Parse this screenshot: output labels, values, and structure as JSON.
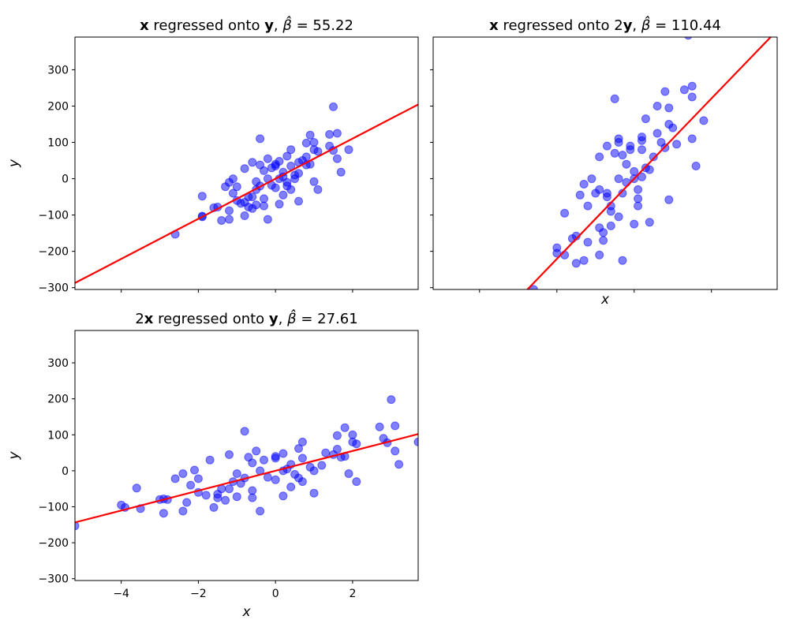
{
  "chart_data": [
    {
      "type": "scatter",
      "title": "x regressed onto y, β̂ = 55.22",
      "title_parts": {
        "bold_var": "x",
        "mid": " regressed onto ",
        "bold_var2": "y",
        "beta": "55.22"
      },
      "xlabel": "",
      "ylabel": "y",
      "xlim": [
        -5.2,
        3.7
      ],
      "ylim": [
        -305,
        390
      ],
      "xticks": [
        -4,
        -2,
        0,
        2
      ],
      "yticks": [
        -300,
        -200,
        -100,
        0,
        100,
        200,
        300
      ],
      "show_x_tick_labels": false,
      "show_y_tick_labels": true,
      "line": {
        "slope": 55.22,
        "color": "#ff0000"
      },
      "marker_color": "#0000ff",
      "points": [
        [
          -2.6,
          -153
        ],
        [
          -1.9,
          -105
        ],
        [
          -1.9,
          -48
        ],
        [
          -1.6,
          -80
        ],
        [
          -1.5,
          -78
        ],
        [
          -1.4,
          -115
        ],
        [
          -1.3,
          -22
        ],
        [
          -1.2,
          -10
        ],
        [
          -1.2,
          -112
        ],
        [
          -1.1,
          -40
        ],
        [
          -1.1,
          0
        ],
        [
          -1.0,
          -22
        ],
        [
          -0.9,
          -68
        ],
        [
          -0.8,
          28
        ],
        [
          -0.8,
          -102
        ],
        [
          -0.7,
          -50
        ],
        [
          -0.6,
          -82
        ],
        [
          -0.6,
          45
        ],
        [
          -0.5,
          -30
        ],
        [
          -0.5,
          -72
        ],
        [
          -0.5,
          -8
        ],
        [
          -0.4,
          110
        ],
        [
          -0.4,
          38
        ],
        [
          -0.3,
          22
        ],
        [
          -0.3,
          -55
        ],
        [
          -0.2,
          55
        ],
        [
          -0.2,
          0
        ],
        [
          -0.2,
          -112
        ],
        [
          -0.1,
          30
        ],
        [
          -0.1,
          -18
        ],
        [
          0.0,
          40
        ],
        [
          0.0,
          -25
        ],
        [
          0.1,
          48
        ],
        [
          0.1,
          0
        ],
        [
          0.2,
          -45
        ],
        [
          0.2,
          18
        ],
        [
          0.3,
          -10
        ],
        [
          0.3,
          62
        ],
        [
          0.4,
          80
        ],
        [
          0.4,
          35
        ],
        [
          0.4,
          -30
        ],
        [
          0.5,
          10
        ],
        [
          0.6,
          -62
        ],
        [
          0.6,
          15
        ],
        [
          0.7,
          50
        ],
        [
          0.8,
          98
        ],
        [
          0.8,
          38
        ],
        [
          0.9,
          120
        ],
        [
          1.0,
          -8
        ],
        [
          1.0,
          100
        ],
        [
          1.1,
          75
        ],
        [
          1.1,
          -30
        ],
        [
          1.4,
          122
        ],
        [
          1.5,
          78
        ],
        [
          1.5,
          198
        ],
        [
          1.6,
          125
        ],
        [
          1.6,
          55
        ],
        [
          1.7,
          18
        ],
        [
          1.9,
          80
        ],
        [
          -1.9,
          -103
        ],
        [
          -1.2,
          -88
        ],
        [
          -0.7,
          -78
        ],
        [
          0.2,
          5
        ],
        [
          0.6,
          45
        ],
        [
          -0.3,
          -75
        ],
        [
          0.0,
          35
        ],
        [
          0.5,
          0
        ],
        [
          -0.8,
          -65
        ],
        [
          0.9,
          40
        ],
        [
          1.0,
          80
        ],
        [
          -0.4,
          -20
        ],
        [
          -1.0,
          -60
        ],
        [
          0.3,
          -20
        ],
        [
          0.8,
          60
        ],
        [
          1.4,
          90
        ],
        [
          -0.6,
          -50
        ],
        [
          0.1,
          -70
        ]
      ]
    },
    {
      "type": "scatter",
      "title": "x regressed onto 2y, β̂ = 110.44",
      "title_parts": {
        "bold_var": "x",
        "mid": " regressed onto 2",
        "bold_var2": "y",
        "beta": "110.44"
      },
      "xlabel": "x",
      "ylabel": "",
      "xlim": [
        -5.2,
        3.7
      ],
      "ylim": [
        -305,
        390
      ],
      "xticks": [
        -4,
        -2,
        0,
        2
      ],
      "yticks": [
        -300,
        -200,
        -100,
        0,
        100,
        200,
        300
      ],
      "show_x_tick_labels": false,
      "show_y_tick_labels": false,
      "line": {
        "slope": 110.44,
        "color": "#ff0000"
      },
      "marker_color": "#0000ff",
      "points": [
        [
          -2.6,
          -305
        ],
        [
          -2.0,
          -190
        ],
        [
          -2.0,
          -205
        ],
        [
          -1.8,
          -95
        ],
        [
          -1.8,
          -210
        ],
        [
          -1.6,
          -165
        ],
        [
          -1.5,
          -233
        ],
        [
          -1.4,
          -45
        ],
        [
          -1.3,
          -15
        ],
        [
          -1.3,
          -225
        ],
        [
          -1.2,
          -75
        ],
        [
          -1.2,
          -175
        ],
        [
          -1.1,
          0
        ],
        [
          -1.0,
          -40
        ],
        [
          -0.9,
          60
        ],
        [
          -0.9,
          -135
        ],
        [
          -0.9,
          -210
        ],
        [
          -0.8,
          -148
        ],
        [
          -0.8,
          -170
        ],
        [
          -0.7,
          90
        ],
        [
          -0.7,
          -40
        ],
        [
          -0.6,
          -130
        ],
        [
          -0.6,
          -75
        ],
        [
          -0.5,
          220
        ],
        [
          -0.5,
          70
        ],
        [
          -0.4,
          110
        ],
        [
          -0.4,
          100
        ],
        [
          -0.4,
          0
        ],
        [
          -0.4,
          -105
        ],
        [
          -0.3,
          65
        ],
        [
          -0.3,
          -40
        ],
        [
          -0.3,
          -225
        ],
        [
          -0.2,
          40
        ],
        [
          -0.1,
          80
        ],
        [
          -0.1,
          90
        ],
        [
          0.0,
          20
        ],
        [
          0.0,
          -125
        ],
        [
          0.1,
          -75
        ],
        [
          0.1,
          -30
        ],
        [
          0.1,
          -55
        ],
        [
          0.2,
          105
        ],
        [
          0.2,
          115
        ],
        [
          0.2,
          80
        ],
        [
          0.2,
          5
        ],
        [
          0.3,
          30
        ],
        [
          0.4,
          -120
        ],
        [
          0.4,
          25
        ],
        [
          0.6,
          125
        ],
        [
          0.8,
          240
        ],
        [
          0.9,
          195
        ],
        [
          0.9,
          150
        ],
        [
          1.0,
          140
        ],
        [
          1.1,
          95
        ],
        [
          1.3,
          245
        ],
        [
          1.4,
          395
        ],
        [
          1.5,
          255
        ],
        [
          1.5,
          225
        ],
        [
          1.5,
          110
        ],
        [
          1.6,
          35
        ],
        [
          1.8,
          160
        ],
        [
          -1.5,
          -158
        ],
        [
          -0.6,
          -90
        ],
        [
          0.0,
          0
        ],
        [
          -0.9,
          -30
        ],
        [
          0.6,
          200
        ],
        [
          0.8,
          85
        ],
        [
          0.9,
          -58
        ],
        [
          0.3,
          165
        ],
        [
          0.5,
          60
        ],
        [
          -0.2,
          -10
        ],
        [
          0.7,
          100
        ],
        [
          -0.7,
          -50
        ]
      ]
    },
    {
      "type": "scatter",
      "title": "2x regressed onto y, β̂ = 27.61",
      "title_parts": {
        "bold_var": "x",
        "pre": "2",
        "mid": " regressed onto ",
        "bold_var2": "y",
        "beta": "27.61"
      },
      "xlabel": "x",
      "ylabel": "y",
      "xlim": [
        -5.2,
        3.7
      ],
      "ylim": [
        -305,
        390
      ],
      "xticks": [
        -4,
        -2,
        0,
        2
      ],
      "yticks": [
        -300,
        -200,
        -100,
        0,
        100,
        200,
        300
      ],
      "show_x_tick_labels": true,
      "show_y_tick_labels": true,
      "line": {
        "slope": 27.61,
        "color": "#ff0000"
      },
      "marker_color": "#0000ff",
      "points": [
        [
          -5.2,
          -153
        ],
        [
          -4.0,
          -95
        ],
        [
          -3.9,
          -102
        ],
        [
          -3.6,
          -48
        ],
        [
          -3.5,
          -105
        ],
        [
          -3.0,
          -80
        ],
        [
          -2.9,
          -118
        ],
        [
          -2.8,
          -80
        ],
        [
          -2.6,
          -22
        ],
        [
          -2.4,
          -8
        ],
        [
          -2.4,
          -112
        ],
        [
          -2.3,
          -88
        ],
        [
          -2.2,
          -40
        ],
        [
          -2.1,
          2
        ],
        [
          -2.0,
          -22
        ],
        [
          -1.8,
          -68
        ],
        [
          -1.7,
          30
        ],
        [
          -1.6,
          -102
        ],
        [
          -1.4,
          -50
        ],
        [
          -1.3,
          -82
        ],
        [
          -1.2,
          45
        ],
        [
          -1.1,
          -30
        ],
        [
          -1.0,
          -72
        ],
        [
          -1.0,
          -8
        ],
        [
          -0.9,
          -35
        ],
        [
          -0.8,
          110
        ],
        [
          -0.7,
          38
        ],
        [
          -0.6,
          22
        ],
        [
          -0.6,
          -55
        ],
        [
          -0.5,
          55
        ],
        [
          -0.4,
          0
        ],
        [
          -0.4,
          -112
        ],
        [
          -0.3,
          30
        ],
        [
          -0.2,
          -18
        ],
        [
          0.0,
          40
        ],
        [
          0.0,
          -25
        ],
        [
          0.2,
          48
        ],
        [
          0.2,
          0
        ],
        [
          0.4,
          -45
        ],
        [
          0.4,
          18
        ],
        [
          0.5,
          -10
        ],
        [
          0.6,
          62
        ],
        [
          0.7,
          80
        ],
        [
          0.7,
          35
        ],
        [
          0.7,
          -30
        ],
        [
          0.9,
          10
        ],
        [
          1.0,
          -62
        ],
        [
          1.2,
          15
        ],
        [
          1.3,
          50
        ],
        [
          1.6,
          98
        ],
        [
          1.7,
          38
        ],
        [
          1.8,
          120
        ],
        [
          1.9,
          -8
        ],
        [
          2.0,
          100
        ],
        [
          2.1,
          75
        ],
        [
          2.1,
          -30
        ],
        [
          2.7,
          122
        ],
        [
          2.9,
          78
        ],
        [
          3.0,
          198
        ],
        [
          3.1,
          125
        ],
        [
          3.1,
          55
        ],
        [
          3.2,
          18
        ],
        [
          3.7,
          80
        ],
        [
          -2.9,
          -78
        ],
        [
          -1.5,
          -75
        ],
        [
          0.3,
          5
        ],
        [
          1.5,
          45
        ],
        [
          -0.6,
          -75
        ],
        [
          0.0,
          35
        ],
        [
          1.0,
          0
        ],
        [
          -1.5,
          -65
        ],
        [
          1.8,
          40
        ],
        [
          2.0,
          80
        ],
        [
          -0.8,
          -20
        ],
        [
          -2.0,
          -60
        ],
        [
          0.6,
          -20
        ],
        [
          1.6,
          60
        ],
        [
          2.8,
          90
        ],
        [
          -1.2,
          -50
        ],
        [
          0.2,
          -70
        ]
      ]
    }
  ]
}
